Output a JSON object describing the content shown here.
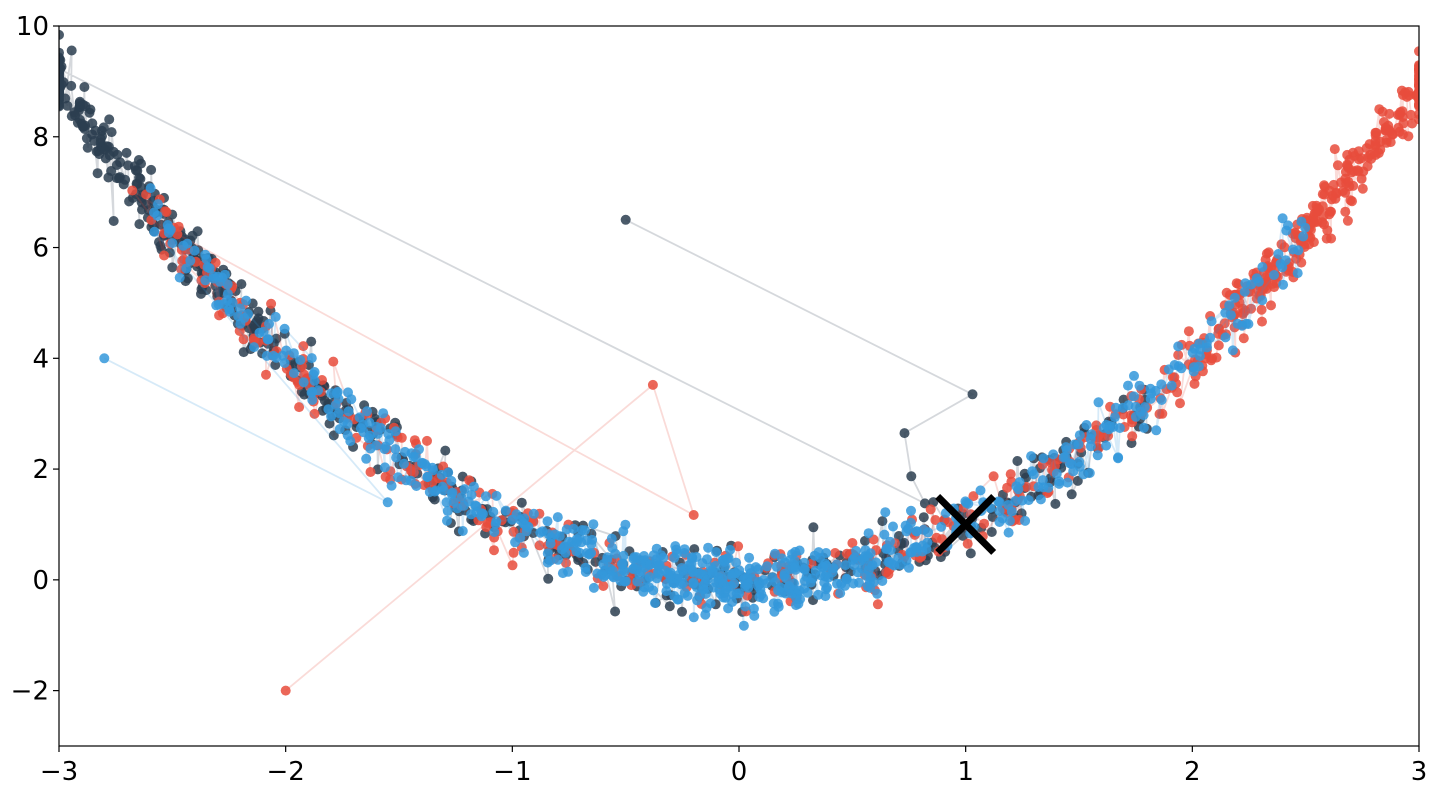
{
  "chart_data": {
    "type": "scatter",
    "title": "",
    "xlabel": "",
    "ylabel": "",
    "xlim": [
      -3,
      3
    ],
    "ylim": [
      -3,
      10
    ],
    "grid": false,
    "legend": "none",
    "x_ticks": [
      -3,
      -2,
      -1,
      0,
      1,
      2,
      3
    ],
    "x_tick_labels": [
      "−3",
      "−2",
      "−1",
      "0",
      "1",
      "2",
      "3"
    ],
    "y_ticks": [
      -2,
      0,
      2,
      4,
      6,
      8,
      10
    ],
    "y_tick_labels": [
      "−2",
      "0",
      "2",
      "4",
      "6",
      "8",
      "10"
    ],
    "series": [
      {
        "color": "#2c3e50",
        "start": [
          -0.5,
          6.5
        ],
        "path_x": [
          -0.5,
          1.03,
          0.73,
          0.76,
          0.82
        ],
        "path_y": [
          6.5,
          3.35,
          2.65,
          1.87,
          1.38
        ],
        "cloud": {
          "x_min": -3.0,
          "x_max": 1.8,
          "x_peak": -2.6,
          "noise": 0.28,
          "count": 600
        }
      },
      {
        "color": "#e74c3c",
        "start": [
          -2.0,
          -2.0
        ],
        "path_x": [
          -2.0,
          -0.38,
          -0.2
        ],
        "path_y": [
          -2.0,
          3.52,
          1.17
        ],
        "cloud": {
          "x_min": -2.7,
          "x_max": 3.0,
          "x_peak": 2.5,
          "noise": 0.28,
          "count": 600
        }
      },
      {
        "color": "#3498db",
        "start": [
          -2.8,
          4.0
        ],
        "path_x": [
          -2.8,
          -1.55
        ],
        "path_y": [
          4.0,
          1.4
        ],
        "cloud": {
          "x_min": -2.6,
          "x_max": 2.5,
          "x_peak": 0.0,
          "noise": 0.28,
          "count": 700
        }
      }
    ],
    "curve": "y = x^2",
    "minimum_marker": {
      "x": 1,
      "y": 1,
      "color": "#000000",
      "symbol": "x"
    }
  }
}
